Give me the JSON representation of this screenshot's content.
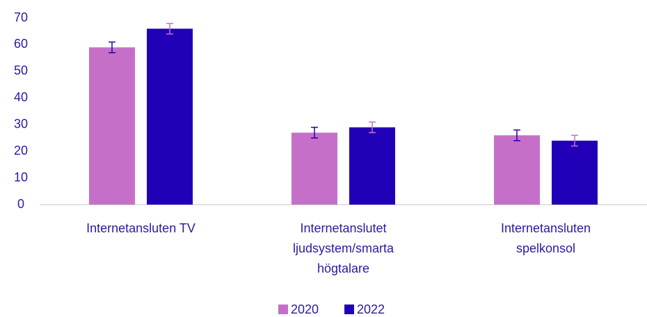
{
  "chart_data": {
    "type": "bar",
    "categories": [
      "Internetansluten TV",
      "Internetanslutet ljudsystem/smarta högtalare",
      "Internetansluten spelkonsol"
    ],
    "series": [
      {
        "name": "2020",
        "color": "#c66fc8",
        "values": [
          59,
          27,
          26
        ],
        "errors": [
          2,
          2,
          2
        ],
        "error_color": "#2200b8"
      },
      {
        "name": "2022",
        "color": "#2200b8",
        "values": [
          66,
          29,
          24
        ],
        "errors": [
          2,
          2,
          2
        ],
        "error_color": "#c66fc8"
      }
    ],
    "ylim": [
      0,
      70
    ],
    "yticks": [
      0,
      10,
      20,
      30,
      40,
      50,
      60,
      70
    ],
    "grid": false,
    "legend": "bottom"
  }
}
